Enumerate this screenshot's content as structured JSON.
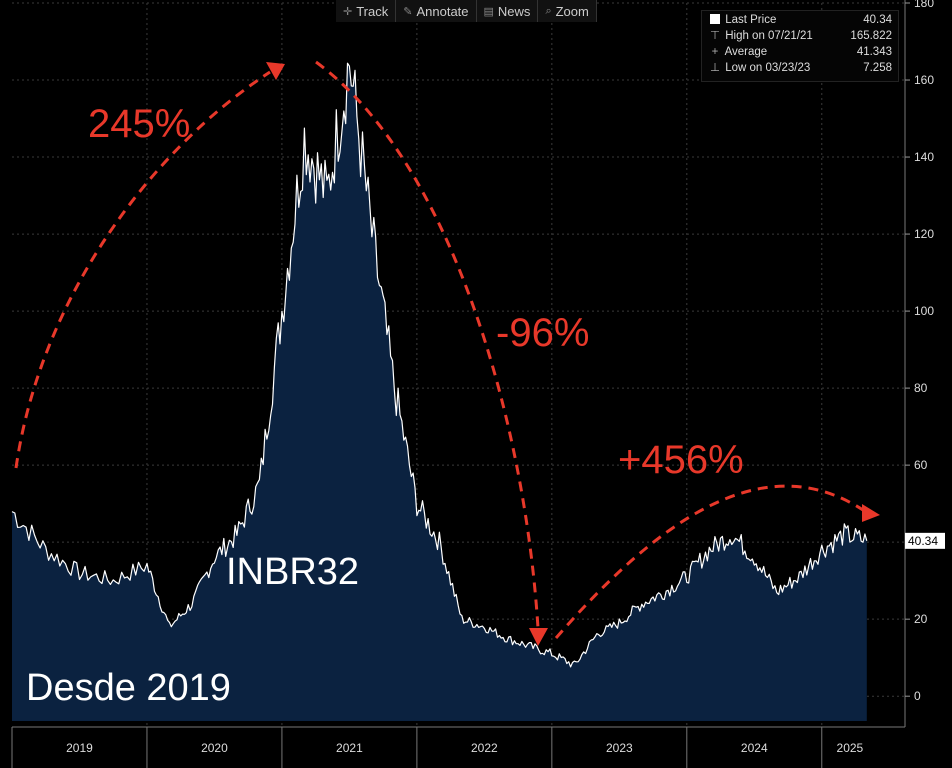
{
  "toolbar": {
    "items": [
      {
        "label": "Track",
        "icon": "crosshair-icon"
      },
      {
        "label": "Annotate",
        "icon": "pencil-icon"
      },
      {
        "label": "News",
        "icon": "newspaper-icon"
      },
      {
        "label": "Zoom",
        "icon": "magnifier-icon"
      }
    ]
  },
  "legend": {
    "rows": [
      {
        "label": "Last Price",
        "value": "40.34"
      },
      {
        "label": "High on 07/21/21",
        "value": "165.822"
      },
      {
        "label": "Average",
        "value": "41.343"
      },
      {
        "label": "Low on 03/23/23",
        "value": "7.258"
      }
    ]
  },
  "last_price_tag": "40.34",
  "annotations": {
    "rise": "245%",
    "fall": "-96%",
    "recovery": "+456%",
    "ticker": "INBR32",
    "since": "Desde 2019"
  },
  "colors": {
    "background": "#000000",
    "area_fill": "#0b2240",
    "line": "#ffffff",
    "arrow": "#e8382a",
    "grid": "#3a3a3a"
  },
  "chart_data": {
    "type": "area",
    "x": [
      "2019-01",
      "2019-04",
      "2019-07",
      "2019-10",
      "2020-01",
      "2020-03",
      "2020-05",
      "2020-07",
      "2020-09",
      "2020-11",
      "2021-01",
      "2021-03",
      "2021-05",
      "2021-07",
      "2021-09",
      "2021-11",
      "2022-01",
      "2022-03",
      "2022-05",
      "2022-07",
      "2022-09",
      "2022-11",
      "2023-01",
      "2023-03",
      "2023-05",
      "2023-07",
      "2023-09",
      "2023-11",
      "2024-01",
      "2024-03",
      "2024-05",
      "2024-07",
      "2024-09",
      "2024-11",
      "2025-01",
      "2025-03",
      "2025-05"
    ],
    "series": [
      {
        "values": [
          48,
          38,
          32,
          30,
          34,
          18,
          24,
          36,
          42,
          55,
          100,
          145,
          130,
          165,
          120,
          80,
          50,
          40,
          20,
          18,
          15,
          13,
          11,
          8,
          16,
          19,
          24,
          27,
          31,
          38,
          42,
          36,
          27,
          31,
          38,
          42,
          40.34
        ]
      }
    ],
    "ylim": [
      -8,
      180
    ],
    "yticks": [
      0,
      20,
      40,
      60,
      80,
      100,
      120,
      140,
      160,
      180
    ],
    "xtick_labels": [
      "2019",
      "2020",
      "2021",
      "2022",
      "2023",
      "2024",
      "2025"
    ],
    "grid": true
  }
}
